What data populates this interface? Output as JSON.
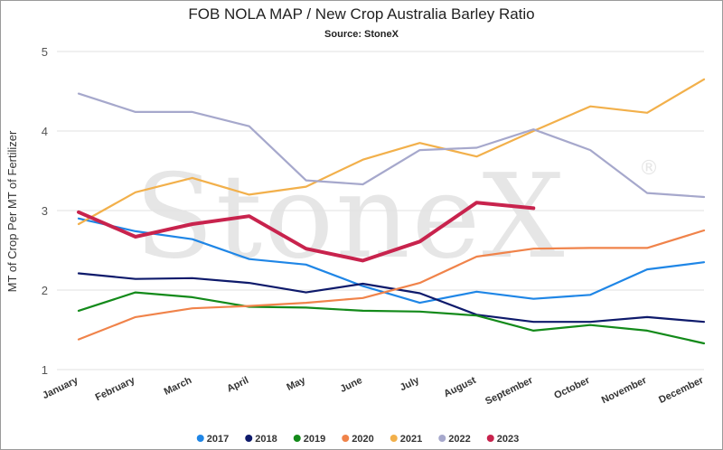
{
  "chart_data": {
    "type": "line",
    "title": "FOB NOLA MAP / New Crop Australia Barley Ratio",
    "subtitle": "Source: StoneX",
    "watermark": "StoneX",
    "watermark_mark": "®",
    "ylabel": "MT of Crop Per MT of Fertilizer",
    "xlabel": "",
    "ylim": [
      1,
      5
    ],
    "yticks": [
      1,
      2,
      3,
      4,
      5
    ],
    "grid": true,
    "legend_position": "bottom",
    "categories": [
      "January",
      "February",
      "March",
      "April",
      "May",
      "June",
      "July",
      "August",
      "September",
      "October",
      "November",
      "December"
    ],
    "series": [
      {
        "name": "2017",
        "color": "#1f86e6",
        "values": [
          2.9,
          2.74,
          2.64,
          2.39,
          2.32,
          2.05,
          1.84,
          1.98,
          1.89,
          1.94,
          2.26,
          2.35
        ]
      },
      {
        "name": "2018",
        "color": "#0e1a6b",
        "values": [
          2.21,
          2.14,
          2.15,
          2.09,
          1.97,
          2.08,
          1.96,
          1.69,
          1.6,
          1.6,
          1.66,
          1.6
        ]
      },
      {
        "name": "2019",
        "color": "#138a1a",
        "values": [
          1.74,
          1.97,
          1.91,
          1.79,
          1.78,
          1.74,
          1.73,
          1.68,
          1.49,
          1.56,
          1.49,
          1.33
        ]
      },
      {
        "name": "2020",
        "color": "#f0834a",
        "values": [
          1.38,
          1.66,
          1.77,
          1.8,
          1.84,
          1.9,
          2.09,
          2.42,
          2.52,
          2.53,
          2.53,
          2.75
        ]
      },
      {
        "name": "2021",
        "color": "#f2b04b",
        "values": [
          2.83,
          3.23,
          3.41,
          3.2,
          3.3,
          3.64,
          3.85,
          3.68,
          4.0,
          4.31,
          4.23,
          4.65
        ]
      },
      {
        "name": "2022",
        "color": "#a6a8cc",
        "values": [
          4.47,
          4.24,
          4.24,
          4.06,
          3.38,
          3.33,
          3.76,
          3.79,
          4.02,
          3.76,
          3.22,
          3.17
        ]
      },
      {
        "name": "2023",
        "color": "#c8234d",
        "values": [
          2.98,
          2.67,
          2.83,
          2.93,
          2.52,
          2.37,
          2.61,
          3.1,
          3.03,
          null,
          null,
          null
        ]
      }
    ]
  }
}
